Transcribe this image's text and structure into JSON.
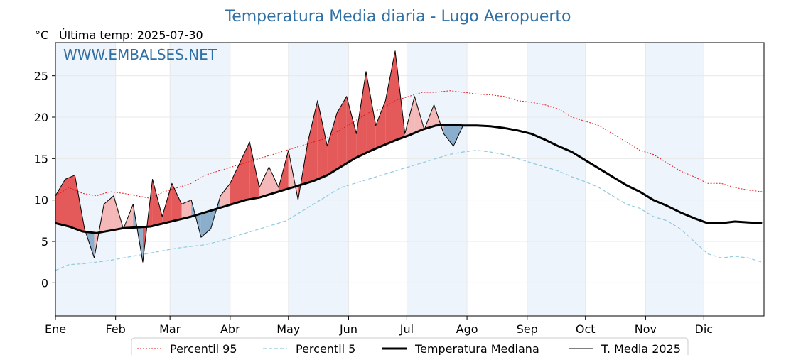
{
  "chart_data": {
    "type": "line",
    "title": "Temperatura Media diaria - Lugo Aeropuerto",
    "ylabel": "°C",
    "subtitle": "Última temp: 2025-07-30",
    "watermark": "WWW.EMBALSES.NET",
    "ylim": [
      -4,
      29
    ],
    "yticks": [
      0,
      5,
      10,
      15,
      20,
      25
    ],
    "xlim_days": [
      0,
      365
    ],
    "months": [
      "Ene",
      "Feb",
      "Mar",
      "Abr",
      "May",
      "Jun",
      "Jul",
      "Ago",
      "Sep",
      "Oct",
      "Nov",
      "Dic"
    ],
    "grid": true,
    "legend_position": "bottom",
    "colors": {
      "title": "#2f6fa3",
      "watermark": "#2f6fa3",
      "p95": "#e4161c",
      "p5": "#8fc9df",
      "median": "#000000",
      "current": "#000000",
      "fill_above": "#f4b8b8",
      "fill_above_strong": "#e45a5a",
      "fill_below": "#8aaecb",
      "band": "#eef4fb"
    },
    "series": [
      {
        "name": "Percentil 95",
        "style": "dotted",
        "x": [
          0,
          7,
          14,
          21,
          28,
          35,
          42,
          49,
          56,
          63,
          70,
          77,
          84,
          91,
          98,
          105,
          112,
          119,
          126,
          133,
          140,
          147,
          154,
          161,
          168,
          175,
          182,
          189,
          196,
          203,
          210,
          217,
          224,
          231,
          238,
          245,
          252,
          259,
          266,
          273,
          280,
          287,
          294,
          301,
          308,
          315,
          322,
          329,
          336,
          343,
          350,
          357,
          364
        ],
        "values": [
          10.5,
          11.5,
          10.8,
          10.5,
          11.0,
          10.8,
          10.5,
          10.2,
          11.0,
          11.5,
          12.0,
          13.0,
          13.5,
          14.0,
          14.5,
          15.0,
          15.5,
          16.0,
          16.5,
          17.0,
          17.5,
          18.5,
          19.5,
          20.5,
          21.0,
          22.0,
          22.5,
          23.0,
          23.0,
          23.2,
          23.0,
          22.8,
          22.7,
          22.5,
          22.0,
          21.8,
          21.5,
          21.0,
          20.0,
          19.5,
          19.0,
          18.0,
          17.0,
          16.0,
          15.5,
          14.5,
          13.5,
          12.8,
          12.0,
          12.0,
          11.5,
          11.2,
          11.0
        ]
      },
      {
        "name": "Percentil 5",
        "style": "dashed",
        "x": [
          0,
          7,
          14,
          21,
          28,
          35,
          42,
          49,
          56,
          63,
          70,
          77,
          84,
          91,
          98,
          105,
          112,
          119,
          126,
          133,
          140,
          147,
          154,
          161,
          168,
          175,
          182,
          189,
          196,
          203,
          210,
          217,
          224,
          231,
          238,
          245,
          252,
          259,
          266,
          273,
          280,
          287,
          294,
          301,
          308,
          315,
          322,
          329,
          336,
          343,
          350,
          357,
          364
        ],
        "values": [
          1.5,
          2.2,
          2.3,
          2.5,
          2.7,
          3.0,
          3.3,
          3.6,
          3.9,
          4.2,
          4.4,
          4.6,
          5.0,
          5.5,
          6.0,
          6.5,
          7.0,
          7.5,
          8.5,
          9.5,
          10.5,
          11.5,
          12.0,
          12.5,
          13.0,
          13.5,
          14.0,
          14.5,
          15.0,
          15.5,
          15.8,
          16.0,
          15.8,
          15.5,
          15.0,
          14.5,
          14.0,
          13.5,
          12.8,
          12.2,
          11.5,
          10.5,
          9.5,
          9.0,
          8.0,
          7.5,
          6.5,
          5.0,
          3.5,
          3.0,
          3.2,
          3.0,
          2.5
        ]
      },
      {
        "name": "Temperatura Mediana",
        "style": "solid-bold",
        "x": [
          0,
          7,
          14,
          21,
          28,
          35,
          42,
          49,
          56,
          63,
          70,
          77,
          84,
          91,
          98,
          105,
          112,
          119,
          126,
          133,
          140,
          147,
          154,
          161,
          168,
          175,
          182,
          189,
          196,
          203,
          210,
          217,
          224,
          231,
          238,
          245,
          252,
          259,
          266,
          273,
          280,
          287,
          294,
          301,
          308,
          315,
          322,
          329,
          336,
          343,
          350,
          357,
          364
        ],
        "values": [
          7.2,
          6.8,
          6.2,
          6.0,
          6.3,
          6.6,
          6.7,
          6.8,
          7.2,
          7.6,
          8.0,
          8.5,
          9.0,
          9.5,
          10.0,
          10.3,
          10.8,
          11.3,
          11.8,
          12.3,
          13.0,
          14.0,
          15.0,
          15.8,
          16.5,
          17.2,
          17.8,
          18.5,
          19.0,
          19.1,
          19.0,
          19.0,
          18.9,
          18.7,
          18.4,
          18.0,
          17.3,
          16.5,
          15.8,
          14.8,
          13.8,
          12.8,
          11.8,
          11.0,
          10.0,
          9.3,
          8.5,
          7.8,
          7.2,
          7.2,
          7.4,
          7.3,
          7.2
        ]
      },
      {
        "name": "T. Media 2025",
        "style": "solid-thin",
        "x": [
          0,
          5,
          10,
          15,
          20,
          25,
          30,
          35,
          40,
          45,
          50,
          55,
          60,
          65,
          70,
          75,
          80,
          85,
          90,
          95,
          100,
          105,
          110,
          115,
          120,
          125,
          130,
          135,
          140,
          145,
          150,
          155,
          160,
          165,
          170,
          175,
          180,
          185,
          190,
          195,
          200,
          205,
          210
        ],
        "values": [
          10.5,
          12.5,
          13.0,
          6.5,
          3.0,
          9.5,
          10.5,
          6.5,
          9.5,
          2.5,
          12.5,
          8.0,
          12.0,
          9.5,
          10.0,
          5.5,
          6.5,
          10.5,
          12.0,
          14.5,
          17.0,
          11.5,
          14.0,
          11.5,
          16.0,
          10.0,
          17.0,
          22.0,
          16.5,
          20.5,
          22.5,
          18.0,
          25.5,
          19.0,
          22.0,
          28.0,
          18.0,
          22.5,
          18.5,
          21.5,
          18.0,
          16.5,
          19.0
        ]
      }
    ]
  }
}
